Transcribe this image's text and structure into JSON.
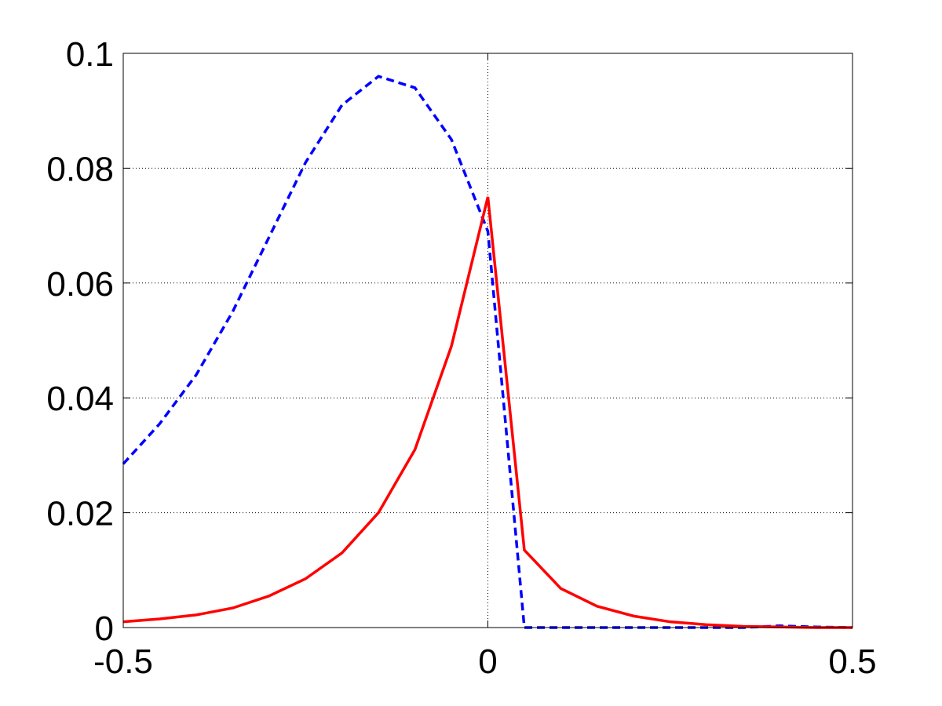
{
  "chart_data": {
    "type": "line",
    "x": [
      -0.5,
      -0.45,
      -0.4,
      -0.35,
      -0.3,
      -0.25,
      -0.2,
      -0.15,
      -0.1,
      -0.05,
      0,
      0.05,
      0.1,
      0.15,
      0.2,
      0.25,
      0.3,
      0.35,
      0.4,
      0.45,
      0.5
    ],
    "series": [
      {
        "color": "#0000ff",
        "dashed": true,
        "values": [
          0.0285,
          0.0355,
          0.044,
          0.055,
          0.068,
          0.081,
          0.091,
          0.096,
          0.094,
          0.085,
          0.069,
          0,
          0,
          0,
          0,
          0,
          0,
          0,
          0.0003,
          0.0001,
          0
        ]
      },
      {
        "color": "#ff0000",
        "dashed": false,
        "values": [
          0.001,
          0.0015,
          0.0022,
          0.0034,
          0.0055,
          0.0085,
          0.013,
          0.02,
          0.031,
          0.049,
          0.075,
          0.0135,
          0.0068,
          0.0037,
          0.002,
          0.001,
          0.0005,
          0.0002,
          0.0001,
          0,
          0
        ]
      }
    ],
    "xlim": [
      -0.5,
      0.5
    ],
    "xticks": [
      -0.5,
      0,
      0.5
    ],
    "ylim": [
      0,
      0.1
    ],
    "yticks": [
      0,
      0.02,
      0.04,
      0.06,
      0.08,
      0.1
    ],
    "grid": true
  }
}
